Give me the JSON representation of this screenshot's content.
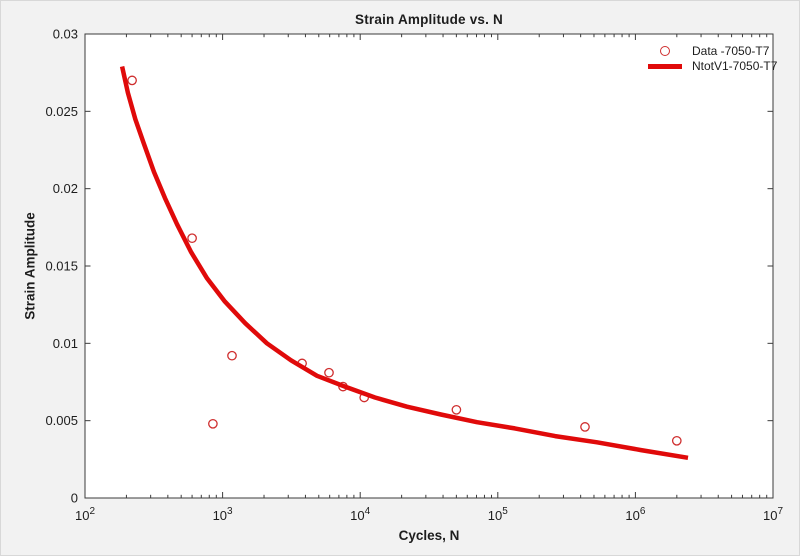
{
  "figure": {
    "background_color": "#f2f2f2"
  },
  "chart_data": {
    "type": "scatter+line",
    "title": "Strain Amplitude vs. N",
    "xlabel": "Cycles, N",
    "ylabel": "Strain Amplitude",
    "x_scale": "log",
    "xlim": [
      100,
      10000000
    ],
    "xtick_exponents": [
      2,
      3,
      4,
      5,
      6,
      7
    ],
    "xtick_base": "10",
    "ylim": [
      0,
      0.03
    ],
    "yticks": [
      0,
      0.005,
      0.01,
      0.015,
      0.02,
      0.025,
      0.03
    ],
    "ytick_labels": [
      "0",
      "0.005",
      "0.01",
      "0.015",
      "0.02",
      "0.025",
      "0.03"
    ],
    "grid": false,
    "box": true,
    "tick_direction": "in",
    "axis_color": "#3b3b3b",
    "text_color": "#1d1d1d",
    "legend": {
      "position": "northeast",
      "box": false,
      "entries": [
        {
          "label": "Data -7050-T7",
          "marker": "circle",
          "color": "#cf2e2e"
        },
        {
          "label": "NtotV1-7050-T7",
          "marker": "line",
          "color": "#e00a0a"
        }
      ]
    },
    "series": [
      {
        "name": "Data -7050-T7",
        "type": "scatter",
        "marker": "circle",
        "color": "#cf2e2e",
        "points": [
          [
            220,
            0.027
          ],
          [
            600,
            0.0168
          ],
          [
            850,
            0.0048
          ],
          [
            1170,
            0.0092
          ],
          [
            3780,
            0.0087
          ],
          [
            5930,
            0.0081
          ],
          [
            7500,
            0.0072
          ],
          [
            10700,
            0.0065
          ],
          [
            50000,
            0.0057
          ],
          [
            430000,
            0.0046
          ],
          [
            2000000,
            0.0037
          ]
        ]
      },
      {
        "name": "NtotV1-7050-T7",
        "type": "line",
        "color": "#e00a0a",
        "line_width": 4.5,
        "points": [
          [
            186,
            0.0279
          ],
          [
            205,
            0.0262
          ],
          [
            232,
            0.0245
          ],
          [
            268,
            0.0229
          ],
          [
            317,
            0.0211
          ],
          [
            381,
            0.0194
          ],
          [
            466,
            0.0177
          ],
          [
            590,
            0.0159
          ],
          [
            771,
            0.0142
          ],
          [
            1040,
            0.0127
          ],
          [
            1460,
            0.0113
          ],
          [
            2100,
            0.01
          ],
          [
            3140,
            0.0089
          ],
          [
            4850,
            0.0079
          ],
          [
            7750,
            0.0072
          ],
          [
            12800,
            0.0065
          ],
          [
            21900,
            0.0059
          ],
          [
            38600,
            0.0054
          ],
          [
            70600,
            0.0049
          ],
          [
            133000,
            0.0045
          ],
          [
            261000,
            0.004
          ],
          [
            526000,
            0.0036
          ],
          [
            1100000,
            0.0031
          ],
          [
            2410000,
            0.0026
          ]
        ]
      }
    ]
  }
}
